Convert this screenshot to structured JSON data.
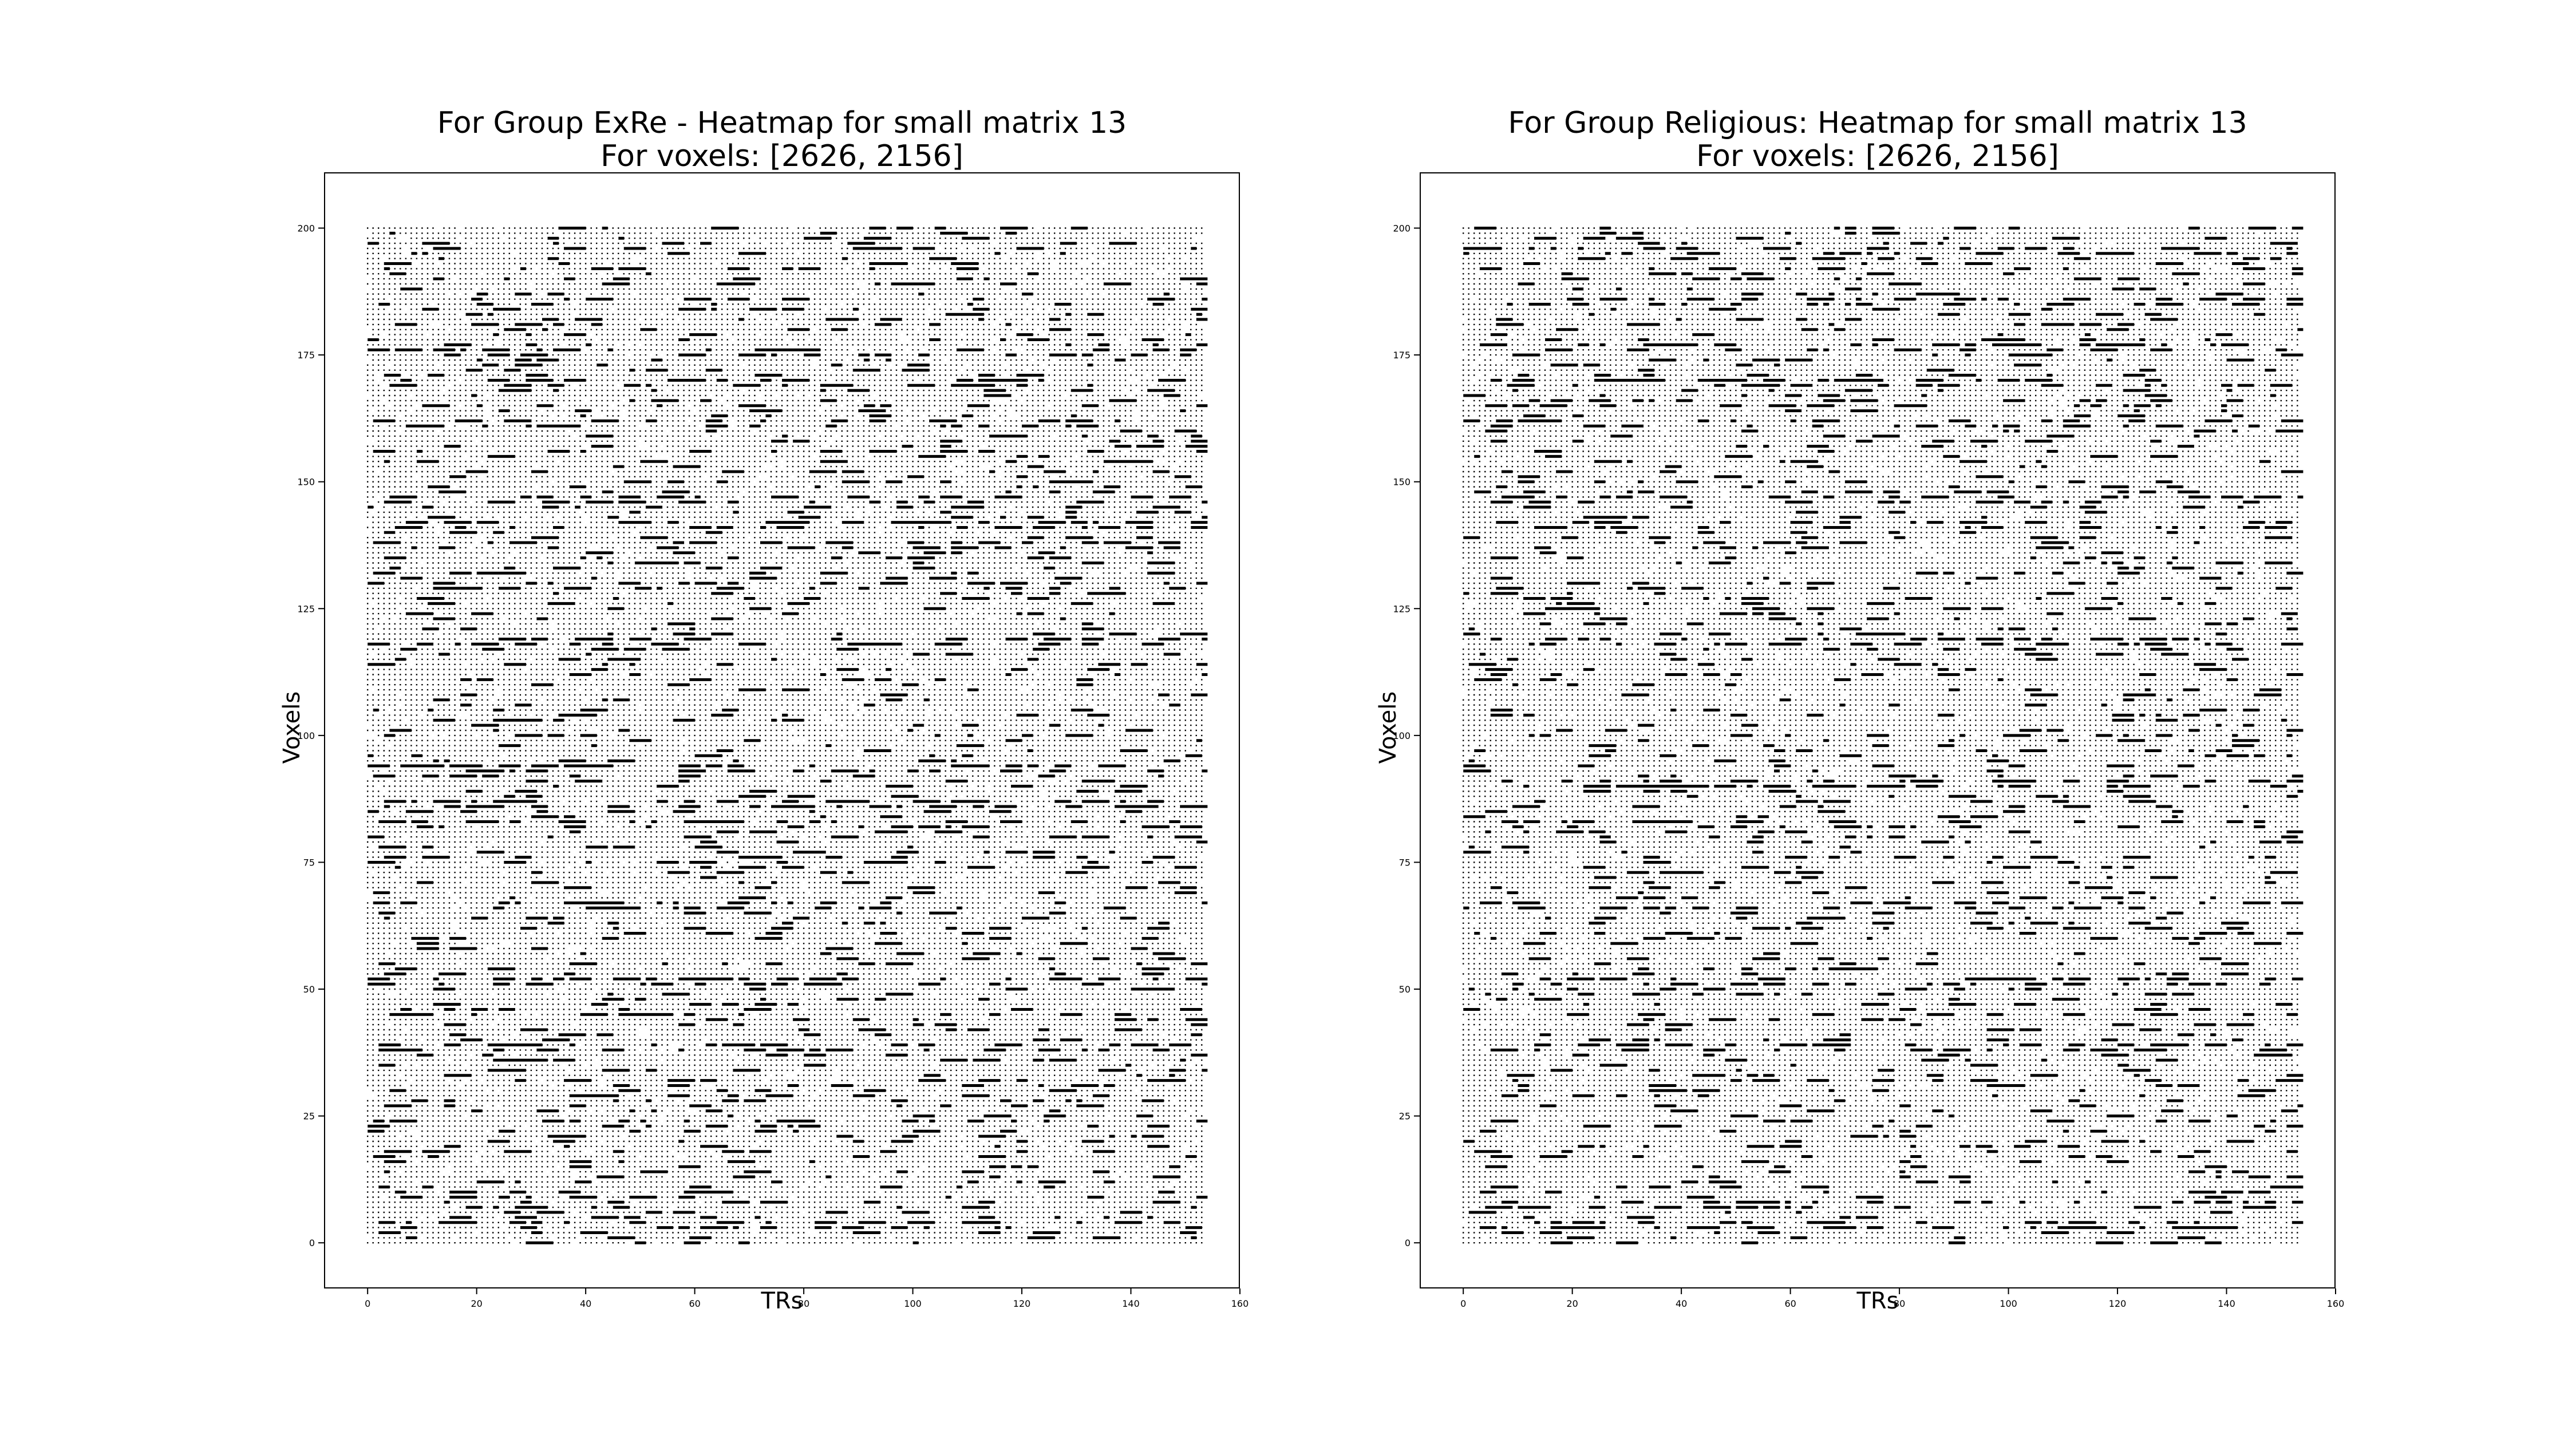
{
  "chart_data": [
    {
      "type": "heatmap",
      "title": "For Group ExRe - Heatmap for small matrix 13",
      "subtitle": "For voxels: [2626, 2156]",
      "xlabel": "TRs",
      "ylabel": "Voxels",
      "xlim": [
        -8,
        160
      ],
      "ylim": [
        -9,
        211
      ],
      "x_ticks": [
        0,
        20,
        40,
        60,
        80,
        100,
        120,
        140,
        160
      ],
      "y_ticks": [
        0,
        25,
        50,
        75,
        100,
        125,
        150,
        175,
        200
      ],
      "n_x": 154,
      "n_y": 201,
      "marker": "dot / dash, denser where activation is higher",
      "band_rows": [
        175,
        169,
        161,
        146,
        141,
        137,
        129,
        118,
        93,
        86,
        82,
        66,
        51,
        38,
        23,
        3
      ],
      "grid": false
    },
    {
      "type": "heatmap",
      "title": "For Group Religious: Heatmap for small matrix 13",
      "subtitle": "For voxels: [2626, 2156]",
      "xlabel": "TRs",
      "ylabel": "Voxels",
      "xlim": [
        -8,
        160
      ],
      "ylim": [
        -9,
        211
      ],
      "x_ticks": [
        0,
        20,
        40,
        60,
        80,
        100,
        120,
        140,
        160
      ],
      "y_ticks": [
        0,
        25,
        50,
        75,
        100,
        125,
        150,
        175,
        200
      ],
      "n_x": 154,
      "n_y": 201,
      "marker": "dot / dash, denser where activation is higher",
      "band_rows": [
        195,
        185,
        176,
        169,
        165,
        161,
        146,
        141,
        118,
        90,
        82,
        66,
        51,
        38,
        7,
        3
      ],
      "grid": false
    }
  ]
}
